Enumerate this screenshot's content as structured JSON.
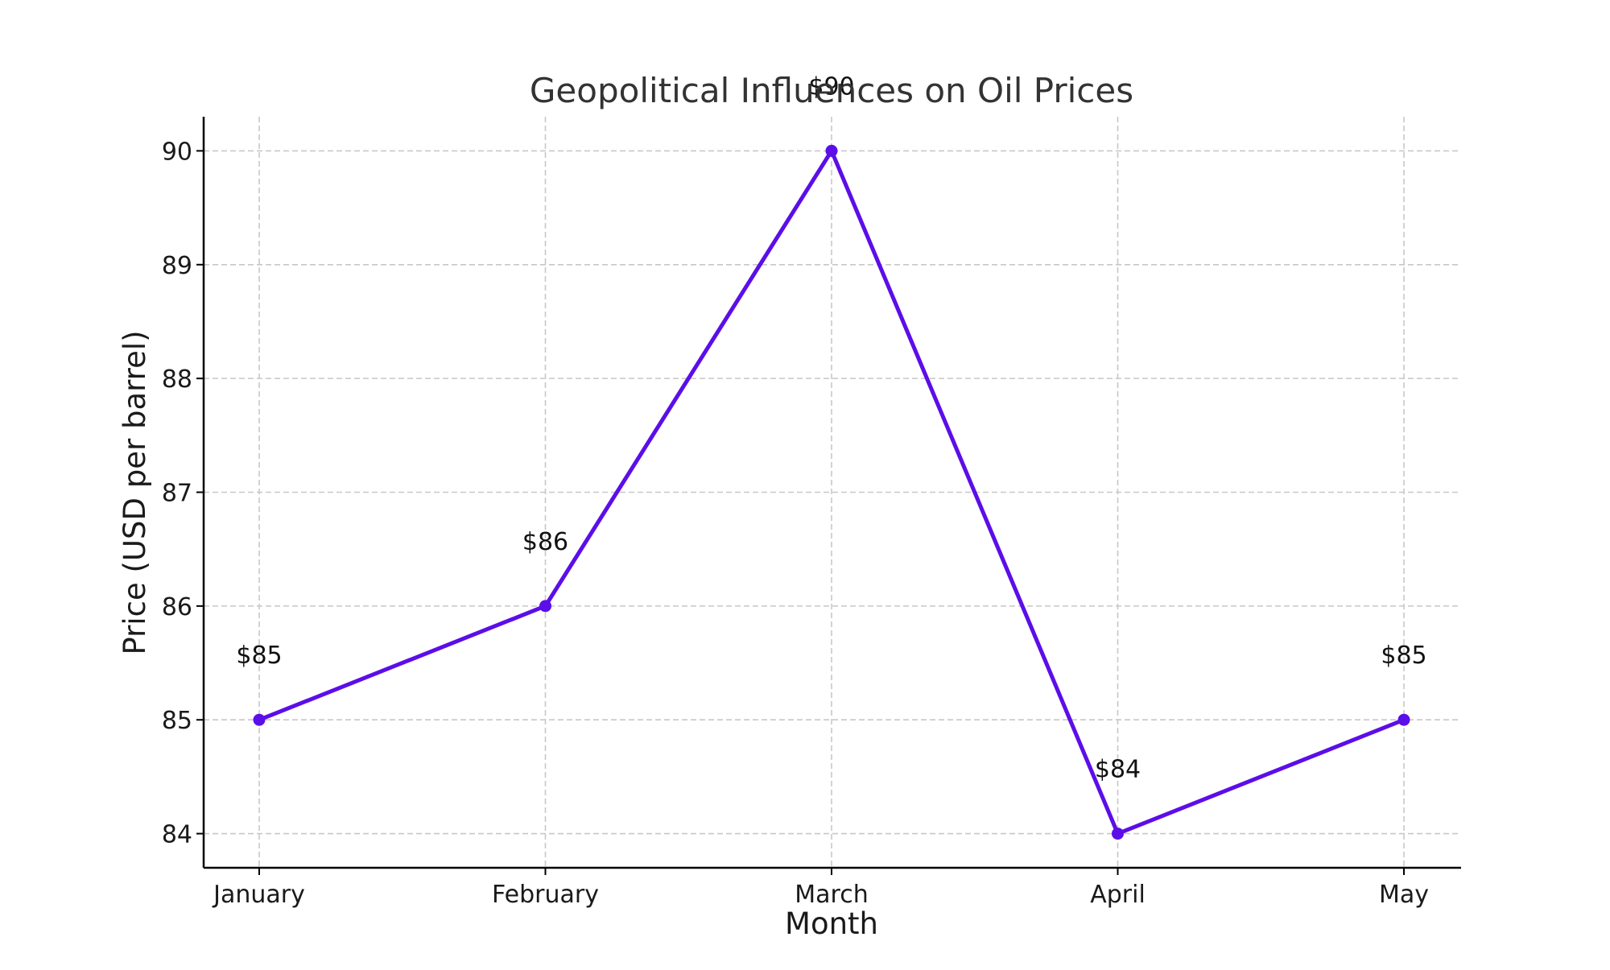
{
  "chart_data": {
    "type": "line",
    "title": "Geopolitical Influences on Oil Prices",
    "xlabel": "Month",
    "ylabel": "Price (USD per barrel)",
    "categories": [
      "January",
      "February",
      "March",
      "April",
      "May"
    ],
    "values": [
      85,
      86,
      90,
      84,
      85
    ],
    "data_labels": [
      "$85",
      "$86",
      "$90",
      "$84",
      "$85"
    ],
    "yticks": [
      84,
      85,
      86,
      87,
      88,
      89,
      90
    ],
    "ytick_labels": [
      "84",
      "85",
      "86",
      "87",
      "88",
      "89",
      "90"
    ],
    "ylim": [
      83.7,
      90.3
    ],
    "grid": true,
    "line_color": "#5b0ee8",
    "marker": "circle"
  }
}
